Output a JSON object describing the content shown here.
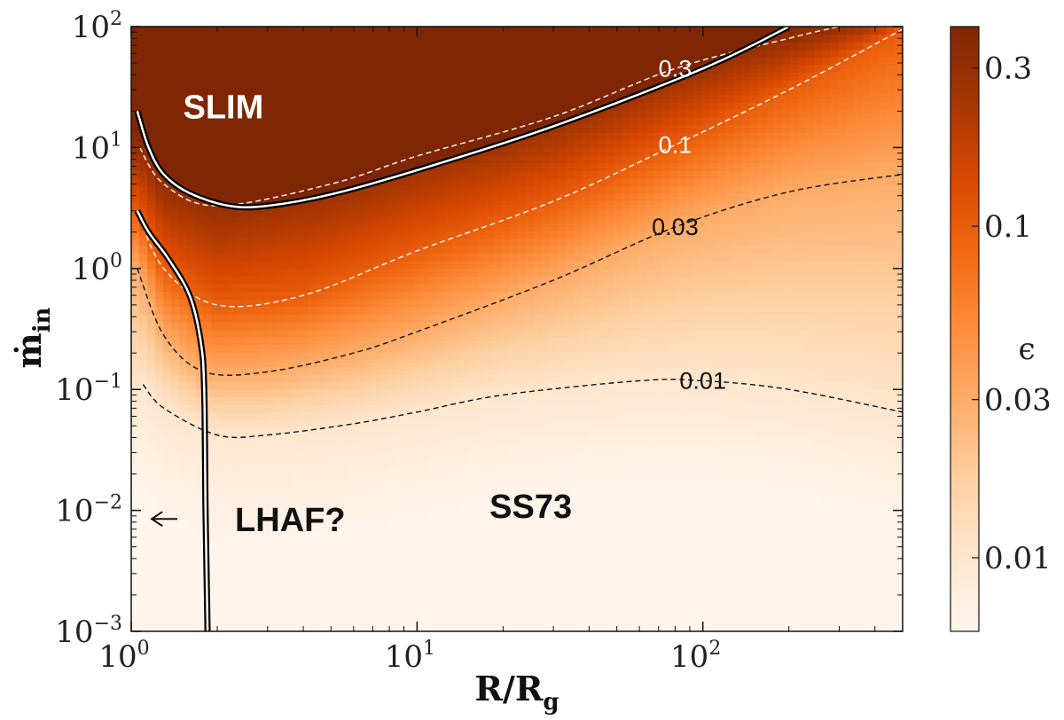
{
  "chart_data": {
    "type": "heatmap",
    "title": "",
    "xlabel": "R/R",
    "xlabel_sub": "g",
    "ylabel": "ṁ",
    "ylabel_sub": "in",
    "xscale": "log",
    "yscale": "log",
    "xlim": [
      1,
      500
    ],
    "ylim": [
      0.001,
      100
    ],
    "x_ticks": [
      {
        "value": 1,
        "base": "10",
        "exp": "0"
      },
      {
        "value": 10,
        "base": "10",
        "exp": "1"
      },
      {
        "value": 100,
        "base": "10",
        "exp": "2"
      }
    ],
    "y_ticks": [
      {
        "value": 0.001,
        "base": "10",
        "exp": "−3"
      },
      {
        "value": 0.01,
        "base": "10",
        "exp": "−2"
      },
      {
        "value": 0.1,
        "base": "10",
        "exp": "−1"
      },
      {
        "value": 1,
        "base": "10",
        "exp": "0"
      },
      {
        "value": 10,
        "base": "10",
        "exp": "1"
      },
      {
        "value": 100,
        "base": "10",
        "exp": "2"
      }
    ],
    "colorbar": {
      "label": "ϵ",
      "scale": "log",
      "range": [
        0.006,
        0.4
      ],
      "ticks": [
        {
          "value": 0.3,
          "label": "0.3"
        },
        {
          "value": 0.1,
          "label": "0.1"
        },
        {
          "value": 0.03,
          "label": "0.03"
        },
        {
          "value": 0.01,
          "label": "0.01"
        }
      ],
      "colormap": [
        "#fff5eb",
        "#fee6ce",
        "#fdd0a2",
        "#fdae6b",
        "#fd8d3c",
        "#f16913",
        "#d94801",
        "#a63603",
        "#7f2704"
      ]
    },
    "contours": [
      {
        "label": "0.3",
        "style": "dashed",
        "color": "#ffffff",
        "label_x": 80,
        "label_y": 45,
        "points": [
          [
            1.07,
            10
          ],
          [
            1.3,
            5
          ],
          [
            2,
            3.3
          ],
          [
            5,
            5
          ],
          [
            10,
            8.5
          ],
          [
            30,
            18
          ],
          [
            80,
            45
          ],
          [
            200,
            80
          ],
          [
            300,
            100
          ]
        ]
      },
      {
        "label": "0.1",
        "style": "dashed",
        "color": "#ffffff",
        "label_x": 80,
        "label_y": 10.5,
        "points": [
          [
            1.05,
            3
          ],
          [
            1.3,
            1
          ],
          [
            2,
            0.5
          ],
          [
            4,
            0.6
          ],
          [
            10,
            1.4
          ],
          [
            30,
            3.6
          ],
          [
            80,
            10.5
          ],
          [
            200,
            30
          ],
          [
            500,
            95
          ]
        ]
      },
      {
        "label": "0.03",
        "style": "dashed",
        "color": "#111111",
        "label_x": 80,
        "label_y": 2.2,
        "points": [
          [
            1.05,
            1
          ],
          [
            1.3,
            0.28
          ],
          [
            1.8,
            0.14
          ],
          [
            3,
            0.14
          ],
          [
            6,
            0.2
          ],
          [
            10,
            0.3
          ],
          [
            30,
            0.8
          ],
          [
            80,
            2.2
          ],
          [
            200,
            4.3
          ],
          [
            500,
            6
          ]
        ]
      },
      {
        "label": "0.01",
        "style": "dashed",
        "color": "#111111",
        "label_x": 100,
        "label_y": 0.118,
        "points": [
          [
            1.1,
            0.11
          ],
          [
            1.3,
            0.07
          ],
          [
            2,
            0.042
          ],
          [
            3,
            0.042
          ],
          [
            6,
            0.052
          ],
          [
            10,
            0.065
          ],
          [
            20,
            0.09
          ],
          [
            60,
            0.118
          ],
          [
            100,
            0.118
          ],
          [
            200,
            0.1
          ],
          [
            500,
            0.065
          ]
        ]
      }
    ],
    "boundaries": [
      {
        "name": "slim-boundary",
        "points": [
          [
            1.05,
            20
          ],
          [
            1.15,
            10
          ],
          [
            1.3,
            6
          ],
          [
            1.6,
            4.2
          ],
          [
            2.2,
            3.3
          ],
          [
            3,
            3.3
          ],
          [
            5,
            4.1
          ],
          [
            10,
            6.5
          ],
          [
            30,
            15
          ],
          [
            100,
            45
          ],
          [
            200,
            100
          ]
        ]
      },
      {
        "name": "lhaf-boundary",
        "points": [
          [
            1.05,
            3
          ],
          [
            1.15,
            2
          ],
          [
            1.35,
            1.2
          ],
          [
            1.6,
            0.6
          ],
          [
            1.75,
            0.25
          ],
          [
            1.8,
            0.1
          ],
          [
            1.82,
            0.01
          ],
          [
            1.85,
            0.001
          ]
        ]
      }
    ],
    "annotations": [
      {
        "name": "slim-label",
        "text": "SLIM",
        "x": 2.1,
        "y": 22,
        "color": "#ffffff"
      },
      {
        "name": "ss73-label",
        "text": "SS73",
        "x": 25,
        "y": 0.011,
        "color": "#111111"
      },
      {
        "name": "lhaf-label",
        "text": "LHAF?",
        "x": 3.6,
        "y": 0.0085,
        "color": "#111111"
      }
    ],
    "arrow": {
      "from_x": 1.45,
      "to_x": 1.18,
      "y": 0.0085
    }
  }
}
